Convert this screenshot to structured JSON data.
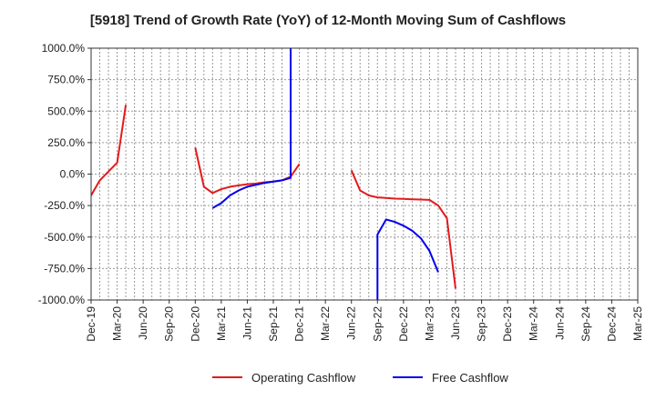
{
  "chart_data": {
    "type": "line",
    "title": "[5918]  Trend of Growth Rate (YoY) of 12-Month Moving Sum of Cashflows",
    "xlabel": "",
    "ylabel": "",
    "ylim": [
      -1000,
      1000
    ],
    "yticks": [
      "1000.0%",
      "750.0%",
      "500.0%",
      "250.0%",
      "0.0%",
      "-250.0%",
      "-500.0%",
      "-750.0%",
      "-1000.0%"
    ],
    "xticks": [
      "Dec-19",
      "Mar-20",
      "Jun-20",
      "Sep-20",
      "Dec-20",
      "Mar-21",
      "Jun-21",
      "Sep-21",
      "Dec-21",
      "Mar-22",
      "Jun-22",
      "Sep-22",
      "Dec-22",
      "Mar-23",
      "Jun-23",
      "Sep-23",
      "Dec-23",
      "Mar-24",
      "Jun-24",
      "Sep-24",
      "Dec-24",
      "Mar-25"
    ],
    "grid": true,
    "legend_position": "bottom",
    "series": [
      {
        "name": "Operating Cashflow",
        "color": "#e31a1c",
        "segments": [
          [
            [
              "2019-12",
              -170
            ],
            [
              "2020-01",
              -50
            ],
            [
              "2020-02",
              20
            ],
            [
              "2020-03",
              90
            ],
            [
              "2020-04",
              550
            ]
          ],
          [
            [
              "2020-12",
              210
            ],
            [
              "2021-01",
              -100
            ],
            [
              "2021-02",
              -150
            ],
            [
              "2021-03",
              -120
            ],
            [
              "2021-04",
              -100
            ],
            [
              "2021-05",
              -90
            ],
            [
              "2021-06",
              -80
            ],
            [
              "2021-07",
              -75
            ],
            [
              "2021-08",
              -65
            ],
            [
              "2021-09",
              -60
            ],
            [
              "2021-10",
              -50
            ],
            [
              "2021-11",
              -20
            ],
            [
              "2021-12",
              80
            ]
          ],
          [
            [
              "2022-06",
              30
            ],
            [
              "2022-07",
              -130
            ],
            [
              "2022-08",
              -170
            ],
            [
              "2022-09",
              -185
            ],
            [
              "2022-10",
              -190
            ],
            [
              "2022-11",
              -195
            ],
            [
              "2022-12",
              -197
            ],
            [
              "2023-01",
              -200
            ],
            [
              "2023-02",
              -202
            ],
            [
              "2023-03",
              -205
            ],
            [
              "2023-04",
              -250
            ],
            [
              "2023-05",
              -350
            ],
            [
              "2023-06",
              -910
            ]
          ]
        ]
      },
      {
        "name": "Free Cashflow",
        "color": "#0000ee",
        "segments": [
          [
            [
              "2021-02",
              -270
            ],
            [
              "2021-03",
              -230
            ],
            [
              "2021-04",
              -170
            ],
            [
              "2021-05",
              -130
            ],
            [
              "2021-06",
              -100
            ],
            [
              "2021-07",
              -85
            ],
            [
              "2021-08",
              -70
            ],
            [
              "2021-09",
              -60
            ],
            [
              "2021-10",
              -50
            ],
            [
              "2021-11",
              -30
            ],
            [
              "2021-11",
              1000
            ]
          ],
          [
            [
              "2022-09",
              -1000
            ],
            [
              "2022-09",
              -480
            ],
            [
              "2022-10",
              -360
            ],
            [
              "2022-11",
              -380
            ],
            [
              "2022-12",
              -410
            ],
            [
              "2023-01",
              -450
            ],
            [
              "2023-02",
              -510
            ],
            [
              "2023-03",
              -610
            ],
            [
              "2023-04",
              -780
            ]
          ]
        ]
      }
    ]
  }
}
